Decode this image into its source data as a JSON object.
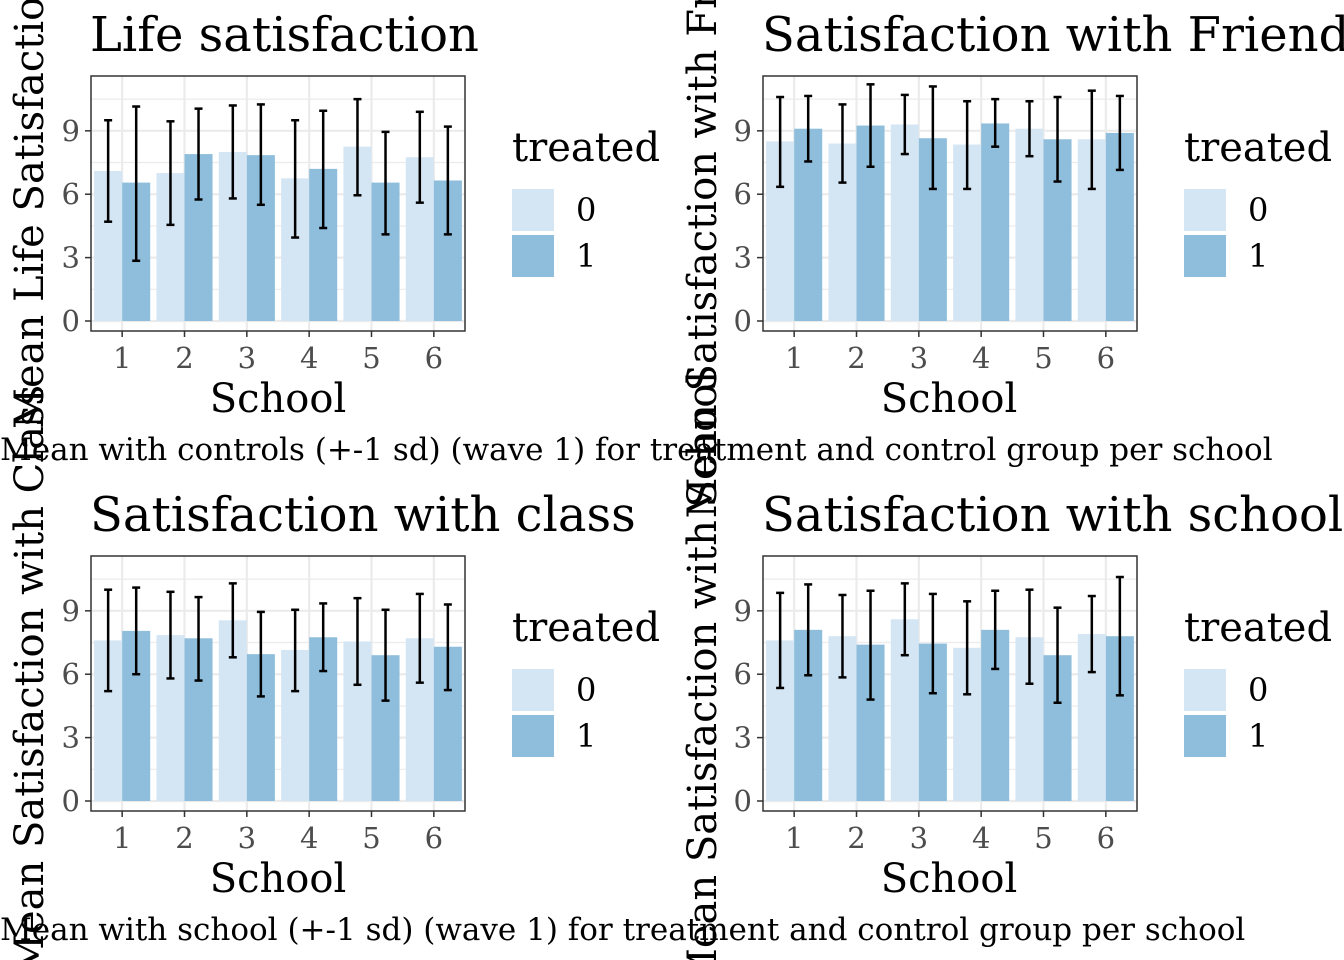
{
  "colors": {
    "control": "#D4E5F4",
    "treated": "#8FBEDC",
    "errorbar": "#000000",
    "grid": "#EBEBEB",
    "panel_border": "#333333"
  },
  "legend": {
    "title": "treated",
    "labels": [
      "0",
      "1"
    ]
  },
  "chart_data": [
    {
      "type": "bar",
      "title": "Life satisfaction",
      "xlabel": "School",
      "ylabel": "Mean Life Satisfaction",
      "caption": "Mean with controls (+-1 sd) (wave 1) for treatment and control group per school",
      "categories": [
        "1",
        "2",
        "3",
        "4",
        "5",
        "6"
      ],
      "ylim": [
        0,
        11.5
      ],
      "yticks": [
        0,
        3,
        6,
        9
      ],
      "series": [
        {
          "name": "0",
          "values": [
            7.1,
            7.0,
            8.0,
            6.75,
            8.25,
            7.75
          ],
          "err_low": [
            4.7,
            4.55,
            5.8,
            3.95,
            5.95,
            5.6
          ],
          "err_high": [
            9.5,
            9.45,
            10.2,
            9.5,
            10.5,
            9.9
          ]
        },
        {
          "name": "1",
          "values": [
            6.55,
            7.9,
            7.85,
            7.2,
            6.55,
            6.65
          ],
          "err_low": [
            2.85,
            5.75,
            5.5,
            4.4,
            4.1,
            4.1
          ],
          "err_high": [
            10.15,
            10.05,
            10.25,
            9.95,
            8.95,
            9.2
          ]
        }
      ]
    },
    {
      "type": "bar",
      "title": "Satisfaction with Friends",
      "xlabel": "School",
      "ylabel": "Mean Satisfaction with Friends",
      "caption": "",
      "categories": [
        "1",
        "2",
        "3",
        "4",
        "5",
        "6"
      ],
      "ylim": [
        0,
        11.5
      ],
      "yticks": [
        0,
        3,
        6,
        9
      ],
      "series": [
        {
          "name": "0",
          "values": [
            8.5,
            8.4,
            9.3,
            8.35,
            9.1,
            8.6
          ],
          "err_low": [
            6.35,
            6.55,
            7.9,
            6.25,
            7.8,
            6.25
          ],
          "err_high": [
            10.6,
            10.25,
            10.7,
            10.4,
            10.4,
            10.9
          ]
        },
        {
          "name": "1",
          "values": [
            9.1,
            9.25,
            8.65,
            9.35,
            8.6,
            8.9
          ],
          "err_low": [
            7.55,
            7.3,
            6.25,
            8.25,
            6.6,
            7.15
          ],
          "err_high": [
            10.65,
            11.2,
            11.1,
            10.5,
            10.6,
            10.65
          ]
        }
      ]
    },
    {
      "type": "bar",
      "title": "Satisfaction with class",
      "xlabel": "School",
      "ylabel": "Mean Satisfaction with Class",
      "caption": "Mean with school (+-1 sd) (wave 1) for treatment and control group per school",
      "categories": [
        "1",
        "2",
        "3",
        "4",
        "5",
        "6"
      ],
      "ylim": [
        0,
        11.5
      ],
      "yticks": [
        0,
        3,
        6,
        9
      ],
      "series": [
        {
          "name": "0",
          "values": [
            7.6,
            7.85,
            8.55,
            7.15,
            7.55,
            7.7
          ],
          "err_low": [
            5.2,
            5.8,
            6.8,
            5.2,
            5.5,
            5.6
          ],
          "err_high": [
            10.0,
            9.9,
            10.3,
            9.05,
            9.6,
            9.8
          ]
        },
        {
          "name": "1",
          "values": [
            8.05,
            7.7,
            6.95,
            7.75,
            6.9,
            7.3
          ],
          "err_low": [
            6.0,
            5.7,
            4.95,
            6.15,
            4.75,
            5.25
          ],
          "err_high": [
            10.1,
            9.65,
            8.95,
            9.35,
            9.05,
            9.3
          ]
        }
      ]
    },
    {
      "type": "bar",
      "title": "Satisfaction with school",
      "xlabel": "School",
      "ylabel": "Mean Satisfaction with School",
      "caption": "",
      "categories": [
        "1",
        "2",
        "3",
        "4",
        "5",
        "6"
      ],
      "ylim": [
        0,
        11.5
      ],
      "yticks": [
        0,
        3,
        6,
        9
      ],
      "series": [
        {
          "name": "0",
          "values": [
            7.6,
            7.8,
            8.6,
            7.25,
            7.75,
            7.9
          ],
          "err_low": [
            5.35,
            5.85,
            6.9,
            5.05,
            5.55,
            6.1
          ],
          "err_high": [
            9.85,
            9.75,
            10.3,
            9.45,
            10.0,
            9.7
          ]
        },
        {
          "name": "1",
          "values": [
            8.1,
            7.4,
            7.45,
            8.1,
            6.9,
            7.8
          ],
          "err_low": [
            5.95,
            4.8,
            5.1,
            6.25,
            4.65,
            5.0
          ],
          "err_high": [
            10.25,
            9.95,
            9.8,
            9.95,
            9.15,
            10.6
          ]
        }
      ]
    }
  ]
}
